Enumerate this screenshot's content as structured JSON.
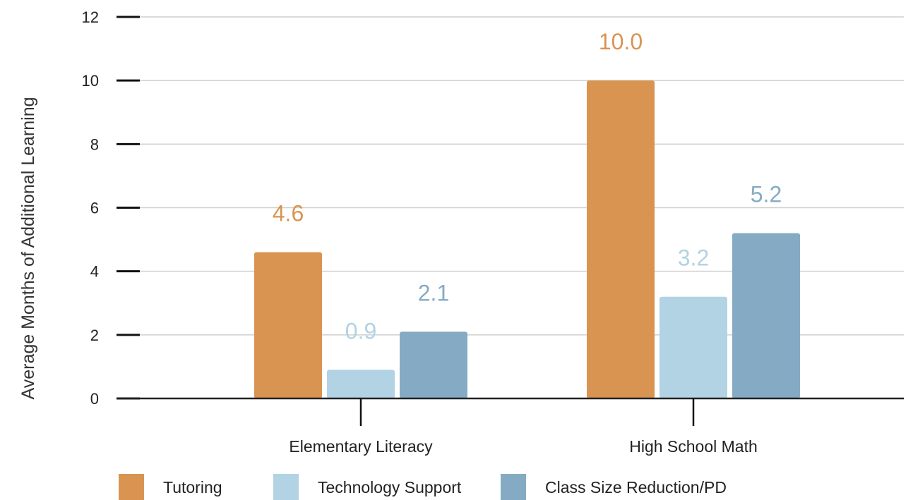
{
  "chart_data": {
    "type": "bar",
    "categories": [
      "Elementary Literacy",
      "High School Math"
    ],
    "series": [
      {
        "name": "Tutoring",
        "values": [
          4.6,
          10.0
        ],
        "labels": [
          "4.6",
          "10.0"
        ],
        "color": "#d99452"
      },
      {
        "name": "Technology Support",
        "values": [
          0.9,
          3.2
        ],
        "labels": [
          "0.9",
          "3.2"
        ],
        "color": "#b1d3e3"
      },
      {
        "name": "Class Size Reduction/PD",
        "values": [
          2.1,
          5.2
        ],
        "labels": [
          "2.1",
          "5.2"
        ],
        "color": "#85abc4"
      }
    ],
    "ylabel": "Average Months of Additional Learning",
    "xlabel": "",
    "ylim": [
      0,
      12
    ],
    "yticks": [
      0,
      2,
      4,
      6,
      8,
      10,
      12
    ],
    "grid": true,
    "legend": "bottom"
  }
}
